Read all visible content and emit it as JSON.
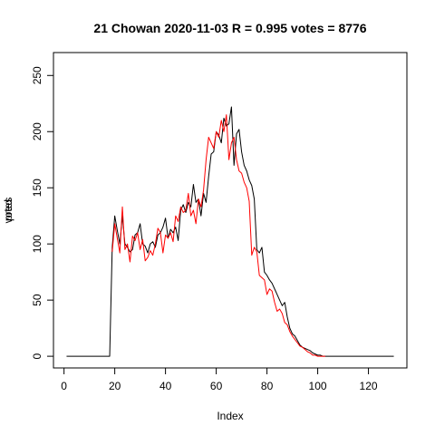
{
  "chart_data": {
    "type": "line",
    "title": "21 Chowan 2020-11-03 R = 0.995 votes = 8776",
    "xlabel": "Index",
    "ylabel_overlap": [
      "votes",
      "pred"
    ],
    "xlim": [
      1,
      130
    ],
    "ylim": [
      0,
      260
    ],
    "x_ticks": [
      0,
      20,
      40,
      60,
      80,
      100,
      120
    ],
    "y_ticks": [
      0,
      50,
      100,
      150,
      200,
      250
    ],
    "grid": false,
    "legend": "none",
    "series": [
      {
        "color": "#000000",
        "x_start": 1,
        "values": [
          0,
          0,
          0,
          0,
          0,
          0,
          0,
          0,
          0,
          0,
          0,
          0,
          0,
          0,
          0,
          0,
          0,
          0,
          97,
          125,
          112,
          100,
          125,
          100,
          97,
          93,
          95,
          108,
          110,
          118,
          100,
          98,
          92,
          100,
          102,
          97,
          108,
          110,
          115,
          123,
          105,
          113,
          110,
          115,
          103,
          130,
          135,
          128,
          137,
          133,
          153,
          137,
          140,
          125,
          145,
          137,
          160,
          180,
          182,
          200,
          197,
          190,
          212,
          205,
          207,
          222,
          170,
          198,
          202,
          182,
          170,
          165,
          157,
          152,
          140,
          95,
          92,
          97,
          75,
          72,
          68,
          65,
          60,
          55,
          50,
          45,
          48,
          35,
          25,
          20,
          18,
          14,
          10,
          8,
          7,
          6,
          5,
          3,
          2,
          1,
          1,
          0,
          0,
          0,
          0,
          0,
          0,
          0,
          0,
          0,
          0,
          0,
          0,
          0,
          0,
          0,
          0,
          0,
          0,
          0,
          0,
          0,
          0,
          0,
          0,
          0,
          0,
          0,
          0,
          0
        ]
      },
      {
        "color": "#ff0000",
        "x_start": 19,
        "values": [
          93,
          118,
          105,
          92,
          133,
          95,
          100,
          84,
          107,
          103,
          110,
          95,
          104,
          85,
          88,
          94,
          90,
          100,
          114,
          110,
          92,
          108,
          105,
          110,
          102,
          125,
          120,
          133,
          128,
          130,
          145,
          125,
          130,
          118,
          140,
          133,
          148,
          175,
          195,
          190,
          185,
          200,
          195,
          210,
          200,
          215,
          175,
          190,
          195,
          175,
          165,
          163,
          155,
          150,
          138,
          90,
          97,
          93,
          72,
          70,
          68,
          55,
          60,
          58,
          48,
          40,
          42,
          38,
          30,
          28,
          22,
          18,
          15,
          12,
          9,
          8,
          6,
          4,
          3,
          1,
          1,
          0,
          0,
          0,
          0
        ]
      }
    ]
  }
}
